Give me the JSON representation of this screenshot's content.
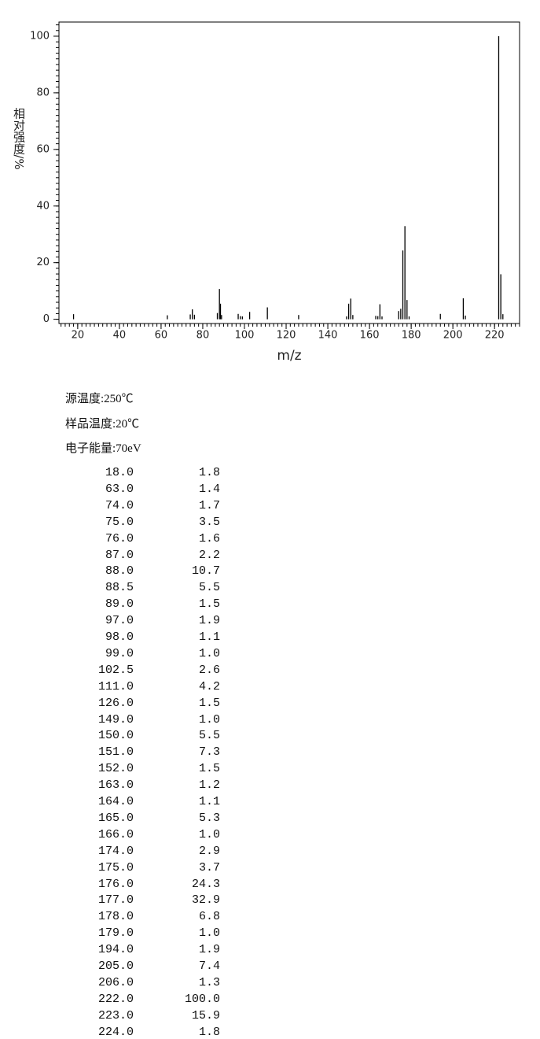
{
  "chart_data": {
    "type": "bar",
    "x_label": "m/z",
    "y_label": "相对强度/%",
    "color": "#000000",
    "x": [
      18,
      63,
      74,
      75,
      76,
      87,
      88,
      88.5,
      89,
      97,
      98,
      99,
      102.5,
      111,
      126,
      149,
      150,
      151,
      152,
      163,
      164,
      165,
      166,
      174,
      175,
      176,
      177,
      178,
      179,
      194,
      205,
      206,
      222,
      223,
      224
    ],
    "values": [
      1.8,
      1.4,
      1.7,
      3.5,
      1.6,
      2.2,
      10.7,
      5.5,
      1.5,
      1.9,
      1.1,
      1.0,
      2.6,
      4.2,
      1.5,
      1.0,
      5.5,
      7.3,
      1.5,
      1.2,
      1.1,
      5.3,
      1.0,
      2.9,
      3.7,
      24.3,
      32.9,
      6.8,
      1.0,
      1.9,
      7.4,
      1.3,
      100.0,
      15.9,
      1.8
    ],
    "xlim": [
      11,
      232
    ],
    "ylim": [
      -1.5,
      105
    ],
    "xticks": [
      20,
      40,
      60,
      80,
      100,
      120,
      140,
      160,
      180,
      200,
      220
    ],
    "yticks": [
      0,
      20,
      40,
      60,
      80,
      100
    ]
  },
  "conditions": [
    "源温度:250℃",
    "样品温度:20℃",
    "电子能量:70eV"
  ],
  "table": {
    "rows": [
      [
        "18.0",
        "1.8"
      ],
      [
        "63.0",
        "1.4"
      ],
      [
        "74.0",
        "1.7"
      ],
      [
        "75.0",
        "3.5"
      ],
      [
        "76.0",
        "1.6"
      ],
      [
        "87.0",
        "2.2"
      ],
      [
        "88.0",
        "10.7"
      ],
      [
        "88.5",
        "5.5"
      ],
      [
        "89.0",
        "1.5"
      ],
      [
        "97.0",
        "1.9"
      ],
      [
        "98.0",
        "1.1"
      ],
      [
        "99.0",
        "1.0"
      ],
      [
        "102.5",
        "2.6"
      ],
      [
        "111.0",
        "4.2"
      ],
      [
        "126.0",
        "1.5"
      ],
      [
        "149.0",
        "1.0"
      ],
      [
        "150.0",
        "5.5"
      ],
      [
        "151.0",
        "7.3"
      ],
      [
        "152.0",
        "1.5"
      ],
      [
        "163.0",
        "1.2"
      ],
      [
        "164.0",
        "1.1"
      ],
      [
        "165.0",
        "5.3"
      ],
      [
        "166.0",
        "1.0"
      ],
      [
        "174.0",
        "2.9"
      ],
      [
        "175.0",
        "3.7"
      ],
      [
        "176.0",
        "24.3"
      ],
      [
        "177.0",
        "32.9"
      ],
      [
        "178.0",
        "6.8"
      ],
      [
        "179.0",
        "1.0"
      ],
      [
        "194.0",
        "1.9"
      ],
      [
        "205.0",
        "7.4"
      ],
      [
        "206.0",
        "1.3"
      ],
      [
        "222.0",
        "100.0"
      ],
      [
        "223.0",
        "15.9"
      ],
      [
        "224.0",
        "1.8"
      ]
    ]
  }
}
